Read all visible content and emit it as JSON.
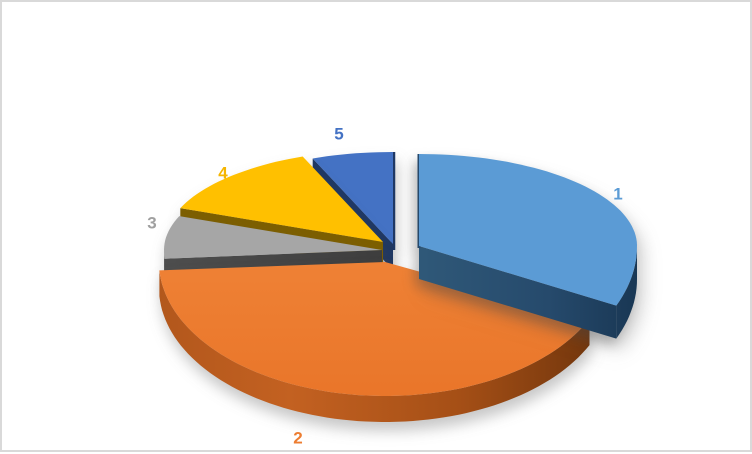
{
  "chart_data": {
    "type": "pie",
    "style": "3d-exploded-pie",
    "title": "",
    "legend": "none",
    "categories": [
      "1",
      "2",
      "3",
      "4",
      "5"
    ],
    "values": [
      32,
      42,
      7,
      13,
      6
    ],
    "value_unit": "% share (estimated from slice angles)",
    "start_angle_deg": 0,
    "direction": "clockwise",
    "exploded_slices": [
      "1"
    ],
    "slice_colors": [
      "#5B9BD5",
      "#ED7D31",
      "#A6A6A6",
      "#FFC000",
      "#4472C4"
    ],
    "slice_side_colors": [
      "#27496B",
      "#A5511A",
      "#454545",
      "#7D5F00",
      "#1F3864"
    ],
    "label_colors": [
      "#5B9BD5",
      "#ED7D31",
      "#A0A0A0",
      "#F5B500",
      "#4472C4"
    ],
    "data_labels": "category-name-outside"
  },
  "frame": {
    "background_color": "#FFFFFF",
    "border_color": "#D9D9D9"
  }
}
